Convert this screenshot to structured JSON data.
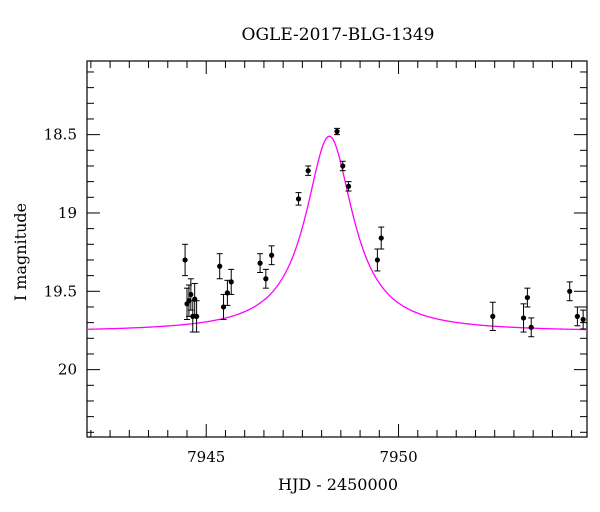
{
  "chart_data": {
    "type": "scatter",
    "title": "OGLE-2017-BLG-1349",
    "xlabel": "HJD - 2450000",
    "ylabel": "I magnitude",
    "xlim": [
      7941.9,
      7954.9
    ],
    "ylim": [
      20.43,
      18.03
    ],
    "y_inverted": true,
    "grid": false,
    "x_ticks": [
      {
        "value": 7945,
        "label": "7945"
      },
      {
        "value": 7950,
        "label": "7950"
      }
    ],
    "y_ticks": [
      {
        "value": 18.5,
        "label": "18.5"
      },
      {
        "value": 19,
        "label": "19"
      },
      {
        "value": 19.5,
        "label": "19.5"
      },
      {
        "value": 20,
        "label": "20"
      }
    ],
    "x_minor_step": 0.5,
    "y_minor_step": 0.1,
    "colors": {
      "model": "#ff00ff",
      "points": "#000000",
      "axes": "#000000"
    },
    "series": [
      {
        "type": "scatter",
        "points": [
          {
            "x": 7944.45,
            "y": 19.3,
            "err": 0.1
          },
          {
            "x": 7944.5,
            "y": 19.58,
            "err": 0.1
          },
          {
            "x": 7944.55,
            "y": 19.56,
            "err": 0.1
          },
          {
            "x": 7944.6,
            "y": 19.52,
            "err": 0.1
          },
          {
            "x": 7944.65,
            "y": 19.66,
            "err": 0.1
          },
          {
            "x": 7944.7,
            "y": 19.55,
            "err": 0.1
          },
          {
            "x": 7944.75,
            "y": 19.66,
            "err": 0.1
          },
          {
            "x": 7945.35,
            "y": 19.34,
            "err": 0.08
          },
          {
            "x": 7945.45,
            "y": 19.6,
            "err": 0.08
          },
          {
            "x": 7945.55,
            "y": 19.51,
            "err": 0.08
          },
          {
            "x": 7945.65,
            "y": 19.44,
            "err": 0.08
          },
          {
            "x": 7946.4,
            "y": 19.32,
            "err": 0.06
          },
          {
            "x": 7946.55,
            "y": 19.42,
            "err": 0.06
          },
          {
            "x": 7946.7,
            "y": 19.27,
            "err": 0.06
          },
          {
            "x": 7947.4,
            "y": 18.91,
            "err": 0.04
          },
          {
            "x": 7947.65,
            "y": 18.73,
            "err": 0.03
          },
          {
            "x": 7948.4,
            "y": 18.48,
            "err": 0.02
          },
          {
            "x": 7948.55,
            "y": 18.7,
            "err": 0.03
          },
          {
            "x": 7948.7,
            "y": 18.83,
            "err": 0.03
          },
          {
            "x": 7949.45,
            "y": 19.3,
            "err": 0.07
          },
          {
            "x": 7949.55,
            "y": 19.16,
            "err": 0.07
          },
          {
            "x": 7952.45,
            "y": 19.66,
            "err": 0.09
          },
          {
            "x": 7953.25,
            "y": 19.67,
            "err": 0.09
          },
          {
            "x": 7953.35,
            "y": 19.54,
            "err": 0.06
          },
          {
            "x": 7953.45,
            "y": 19.73,
            "err": 0.06
          },
          {
            "x": 7954.45,
            "y": 19.5,
            "err": 0.06
          },
          {
            "x": 7954.65,
            "y": 19.66,
            "err": 0.06
          },
          {
            "x": 7954.8,
            "y": 19.68,
            "err": 0.06
          }
        ]
      },
      {
        "type": "line",
        "model": {
          "t0": 7948.2,
          "width": 0.75,
          "baseline": 19.76,
          "peak": 18.51
        }
      }
    ]
  }
}
